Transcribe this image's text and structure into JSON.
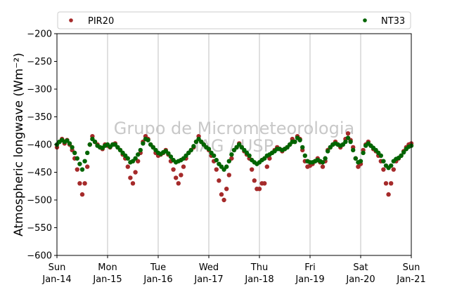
{
  "chart_data": {
    "type": "scatter",
    "title": "",
    "xlabel": "",
    "ylabel": "Atmospheric longwave (Wm⁻²)",
    "ylim": [
      -600,
      -200
    ],
    "yticks": [
      -600,
      -550,
      -500,
      -450,
      -400,
      -350,
      -300,
      -250,
      -200
    ],
    "xlim": [
      "2007-01-14",
      "2007-01-21"
    ],
    "x_tick_labels": [
      {
        "day": "Sun",
        "date": "Jan-14"
      },
      {
        "day": "Mon",
        "date": "Jan-15"
      },
      {
        "day": "Tue",
        "date": "Jan-16"
      },
      {
        "day": "Wed",
        "date": "Jan-17"
      },
      {
        "day": "Thu",
        "date": "Jan-18"
      },
      {
        "day": "Fri",
        "date": "Jan-19"
      },
      {
        "day": "Sat",
        "date": "Jan-20"
      },
      {
        "day": "Sun",
        "date": "Jan-21"
      }
    ],
    "grid": "vertical",
    "legend_position": "top",
    "watermark": [
      "Grupo de Micrometeorologia",
      "IAG / USP"
    ],
    "series": [
      {
        "name": "PIR20",
        "color": "#a52a2a",
        "points": [
          [
            0.0,
            -405
          ],
          [
            0.05,
            -395
          ],
          [
            0.1,
            -390
          ],
          [
            0.15,
            -398
          ],
          [
            0.2,
            -392
          ],
          [
            0.25,
            -400
          ],
          [
            0.3,
            -410
          ],
          [
            0.35,
            -425
          ],
          [
            0.4,
            -445
          ],
          [
            0.45,
            -470
          ],
          [
            0.5,
            -490
          ],
          [
            0.55,
            -470
          ],
          [
            0.6,
            -440
          ],
          [
            0.65,
            -400
          ],
          [
            0.7,
            -385
          ],
          [
            0.75,
            -395
          ],
          [
            0.8,
            -400
          ],
          [
            0.85,
            -405
          ],
          [
            0.9,
            -408
          ],
          [
            0.95,
            -400
          ],
          [
            1.0,
            -402
          ],
          [
            1.05,
            -405
          ],
          [
            1.1,
            -400
          ],
          [
            1.15,
            -398
          ],
          [
            1.2,
            -405
          ],
          [
            1.25,
            -410
          ],
          [
            1.3,
            -418
          ],
          [
            1.35,
            -425
          ],
          [
            1.4,
            -440
          ],
          [
            1.45,
            -460
          ],
          [
            1.5,
            -470
          ],
          [
            1.55,
            -450
          ],
          [
            1.6,
            -430
          ],
          [
            1.65,
            -415
          ],
          [
            1.7,
            -395
          ],
          [
            1.75,
            -385
          ],
          [
            1.8,
            -390
          ],
          [
            1.85,
            -400
          ],
          [
            1.9,
            -405
          ],
          [
            1.95,
            -415
          ],
          [
            2.0,
            -420
          ],
          [
            2.05,
            -418
          ],
          [
            2.1,
            -415
          ],
          [
            2.15,
            -410
          ],
          [
            2.2,
            -418
          ],
          [
            2.25,
            -430
          ],
          [
            2.3,
            -445
          ],
          [
            2.35,
            -460
          ],
          [
            2.4,
            -470
          ],
          [
            2.45,
            -455
          ],
          [
            2.5,
            -440
          ],
          [
            2.55,
            -425
          ],
          [
            2.6,
            -415
          ],
          [
            2.65,
            -410
          ],
          [
            2.7,
            -405
          ],
          [
            2.75,
            -395
          ],
          [
            2.8,
            -385
          ],
          [
            2.85,
            -395
          ],
          [
            2.9,
            -400
          ],
          [
            2.95,
            -405
          ],
          [
            3.0,
            -410
          ],
          [
            3.05,
            -420
          ],
          [
            3.1,
            -430
          ],
          [
            3.15,
            -445
          ],
          [
            3.2,
            -465
          ],
          [
            3.25,
            -490
          ],
          [
            3.3,
            -500
          ],
          [
            3.35,
            -480
          ],
          [
            3.4,
            -455
          ],
          [
            3.45,
            -425
          ],
          [
            3.5,
            -410
          ],
          [
            3.55,
            -405
          ],
          [
            3.6,
            -398
          ],
          [
            3.65,
            -405
          ],
          [
            3.7,
            -412
          ],
          [
            3.75,
            -418
          ],
          [
            3.8,
            -425
          ],
          [
            3.85,
            -445
          ],
          [
            3.9,
            -465
          ],
          [
            3.95,
            -480
          ],
          [
            4.0,
            -480
          ],
          [
            4.05,
            -470
          ],
          [
            4.1,
            -470
          ],
          [
            4.15,
            -440
          ],
          [
            4.2,
            -425
          ],
          [
            4.25,
            -415
          ],
          [
            4.3,
            -410
          ],
          [
            4.35,
            -405
          ],
          [
            4.4,
            -408
          ],
          [
            4.45,
            -412
          ],
          [
            4.5,
            -408
          ],
          [
            4.55,
            -405
          ],
          [
            4.6,
            -400
          ],
          [
            4.65,
            -390
          ],
          [
            4.7,
            -395
          ],
          [
            4.75,
            -385
          ],
          [
            4.8,
            -390
          ],
          [
            4.85,
            -410
          ],
          [
            4.9,
            -430
          ],
          [
            4.95,
            -440
          ],
          [
            5.0,
            -438
          ],
          [
            5.05,
            -435
          ],
          [
            5.1,
            -430
          ],
          [
            5.15,
            -425
          ],
          [
            5.2,
            -432
          ],
          [
            5.25,
            -440
          ],
          [
            5.3,
            -430
          ],
          [
            5.35,
            -410
          ],
          [
            5.4,
            -405
          ],
          [
            5.45,
            -400
          ],
          [
            5.5,
            -395
          ],
          [
            5.55,
            -400
          ],
          [
            5.6,
            -405
          ],
          [
            5.65,
            -400
          ],
          [
            5.7,
            -390
          ],
          [
            5.75,
            -380
          ],
          [
            5.8,
            -392
          ],
          [
            5.85,
            -405
          ],
          [
            5.9,
            -425
          ],
          [
            5.95,
            -440
          ],
          [
            6.0,
            -435
          ],
          [
            6.05,
            -410
          ],
          [
            6.1,
            -400
          ],
          [
            6.15,
            -395
          ],
          [
            6.2,
            -402
          ],
          [
            6.25,
            -408
          ],
          [
            6.3,
            -412
          ],
          [
            6.35,
            -420
          ],
          [
            6.4,
            -430
          ],
          [
            6.45,
            -445
          ],
          [
            6.5,
            -470
          ],
          [
            6.55,
            -490
          ],
          [
            6.6,
            -470
          ],
          [
            6.65,
            -445
          ],
          [
            6.7,
            -430
          ],
          [
            6.75,
            -425
          ],
          [
            6.8,
            -420
          ],
          [
            6.85,
            -412
          ],
          [
            6.9,
            -405
          ],
          [
            6.95,
            -400
          ],
          [
            7.0,
            -398
          ]
        ]
      },
      {
        "name": "NT33",
        "color": "#006400",
        "points": [
          [
            0.0,
            -400
          ],
          [
            0.05,
            -395
          ],
          [
            0.1,
            -392
          ],
          [
            0.15,
            -395
          ],
          [
            0.2,
            -393
          ],
          [
            0.25,
            -398
          ],
          [
            0.3,
            -405
          ],
          [
            0.35,
            -415
          ],
          [
            0.4,
            -425
          ],
          [
            0.45,
            -435
          ],
          [
            0.5,
            -445
          ],
          [
            0.55,
            -430
          ],
          [
            0.6,
            -415
          ],
          [
            0.65,
            -400
          ],
          [
            0.7,
            -390
          ],
          [
            0.75,
            -395
          ],
          [
            0.8,
            -402
          ],
          [
            0.85,
            -405
          ],
          [
            0.9,
            -406
          ],
          [
            0.95,
            -402
          ],
          [
            1.0,
            -400
          ],
          [
            1.05,
            -404
          ],
          [
            1.1,
            -400
          ],
          [
            1.15,
            -400
          ],
          [
            1.2,
            -405
          ],
          [
            1.25,
            -410
          ],
          [
            1.3,
            -415
          ],
          [
            1.35,
            -420
          ],
          [
            1.4,
            -425
          ],
          [
            1.45,
            -432
          ],
          [
            1.5,
            -430
          ],
          [
            1.55,
            -425
          ],
          [
            1.6,
            -418
          ],
          [
            1.65,
            -410
          ],
          [
            1.7,
            -398
          ],
          [
            1.75,
            -390
          ],
          [
            1.8,
            -392
          ],
          [
            1.85,
            -400
          ],
          [
            1.9,
            -405
          ],
          [
            1.95,
            -410
          ],
          [
            2.0,
            -415
          ],
          [
            2.05,
            -417
          ],
          [
            2.1,
            -414
          ],
          [
            2.15,
            -412
          ],
          [
            2.2,
            -416
          ],
          [
            2.25,
            -422
          ],
          [
            2.3,
            -428
          ],
          [
            2.35,
            -432
          ],
          [
            2.4,
            -430
          ],
          [
            2.45,
            -428
          ],
          [
            2.5,
            -425
          ],
          [
            2.55,
            -420
          ],
          [
            2.6,
            -415
          ],
          [
            2.65,
            -410
          ],
          [
            2.7,
            -403
          ],
          [
            2.75,
            -395
          ],
          [
            2.8,
            -390
          ],
          [
            2.85,
            -395
          ],
          [
            2.9,
            -400
          ],
          [
            2.95,
            -405
          ],
          [
            3.0,
            -408
          ],
          [
            3.05,
            -415
          ],
          [
            3.1,
            -420
          ],
          [
            3.15,
            -428
          ],
          [
            3.2,
            -435
          ],
          [
            3.25,
            -440
          ],
          [
            3.3,
            -445
          ],
          [
            3.35,
            -440
          ],
          [
            3.4,
            -430
          ],
          [
            3.45,
            -418
          ],
          [
            3.5,
            -410
          ],
          [
            3.55,
            -405
          ],
          [
            3.6,
            -400
          ],
          [
            3.65,
            -405
          ],
          [
            3.7,
            -410
          ],
          [
            3.75,
            -415
          ],
          [
            3.8,
            -420
          ],
          [
            3.85,
            -428
          ],
          [
            3.9,
            -432
          ],
          [
            3.95,
            -435
          ],
          [
            4.0,
            -432
          ],
          [
            4.05,
            -428
          ],
          [
            4.1,
            -425
          ],
          [
            4.15,
            -420
          ],
          [
            4.2,
            -418
          ],
          [
            4.25,
            -415
          ],
          [
            4.3,
            -412
          ],
          [
            4.35,
            -408
          ],
          [
            4.4,
            -408
          ],
          [
            4.45,
            -410
          ],
          [
            4.5,
            -408
          ],
          [
            4.55,
            -405
          ],
          [
            4.6,
            -400
          ],
          [
            4.65,
            -395
          ],
          [
            4.7,
            -395
          ],
          [
            4.75,
            -388
          ],
          [
            4.8,
            -392
          ],
          [
            4.85,
            -405
          ],
          [
            4.9,
            -420
          ],
          [
            4.95,
            -430
          ],
          [
            5.0,
            -432
          ],
          [
            5.05,
            -432
          ],
          [
            5.1,
            -430
          ],
          [
            5.15,
            -428
          ],
          [
            5.2,
            -430
          ],
          [
            5.25,
            -432
          ],
          [
            5.3,
            -425
          ],
          [
            5.35,
            -412
          ],
          [
            5.4,
            -405
          ],
          [
            5.45,
            -400
          ],
          [
            5.5,
            -398
          ],
          [
            5.55,
            -400
          ],
          [
            5.6,
            -402
          ],
          [
            5.65,
            -400
          ],
          [
            5.7,
            -395
          ],
          [
            5.75,
            -388
          ],
          [
            5.8,
            -395
          ],
          [
            5.85,
            -410
          ],
          [
            5.9,
            -425
          ],
          [
            5.95,
            -432
          ],
          [
            6.0,
            -430
          ],
          [
            6.05,
            -415
          ],
          [
            6.1,
            -402
          ],
          [
            6.15,
            -398
          ],
          [
            6.2,
            -402
          ],
          [
            6.25,
            -406
          ],
          [
            6.3,
            -410
          ],
          [
            6.35,
            -415
          ],
          [
            6.4,
            -420
          ],
          [
            6.45,
            -430
          ],
          [
            6.5,
            -438
          ],
          [
            6.55,
            -442
          ],
          [
            6.6,
            -438
          ],
          [
            6.65,
            -430
          ],
          [
            6.7,
            -426
          ],
          [
            6.75,
            -424
          ],
          [
            6.8,
            -420
          ],
          [
            6.85,
            -414
          ],
          [
            6.9,
            -408
          ],
          [
            6.95,
            -404
          ],
          [
            7.0,
            -402
          ]
        ]
      }
    ]
  }
}
